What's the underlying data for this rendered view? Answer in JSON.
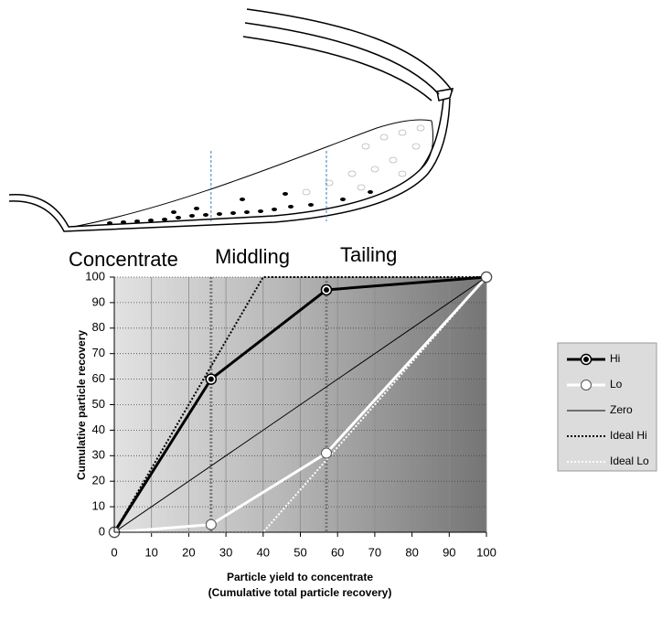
{
  "chart_data": {
    "type": "line",
    "ylabel": "Cumulative particle recovery",
    "xlabel": [
      "Particle yield to concentrate",
      "(Cumulative total particle recovery)"
    ],
    "annotations": [
      "Concentrate",
      "Middling",
      "Tailing"
    ],
    "separators": [
      26,
      57
    ],
    "xlim": [
      0,
      100
    ],
    "ylim": [
      0,
      100
    ],
    "xticks": [
      0,
      10,
      20,
      30,
      40,
      50,
      60,
      70,
      80,
      90,
      100
    ],
    "yticks": [
      0,
      10,
      20,
      30,
      40,
      50,
      60,
      70,
      80,
      90,
      100
    ],
    "grid": true,
    "legend": "right",
    "series": [
      {
        "name": "Hi",
        "color": "#000000",
        "line_style": "solid",
        "marker": "filled",
        "x": [
          0,
          26,
          57,
          100
        ],
        "values": [
          0,
          60,
          95,
          100
        ]
      },
      {
        "name": "Lo",
        "color": "#ffffff",
        "line_style": "solid",
        "marker": "open",
        "x": [
          0,
          26,
          57,
          100
        ],
        "values": [
          0,
          3,
          31,
          100
        ]
      },
      {
        "name": "Zero",
        "color": "#000000",
        "line_style": "thin",
        "x": [
          0,
          100
        ],
        "values": [
          0,
          100
        ]
      },
      {
        "name": "Ideal Hi",
        "color": "#000000",
        "line_style": "dotted",
        "x": [
          0,
          40,
          100
        ],
        "values": [
          0,
          100,
          100
        ]
      },
      {
        "name": "Ideal Lo",
        "color": "#ffffff",
        "line_style": "dotted",
        "x": [
          0,
          40,
          100
        ],
        "values": [
          0,
          0,
          100
        ]
      }
    ]
  }
}
